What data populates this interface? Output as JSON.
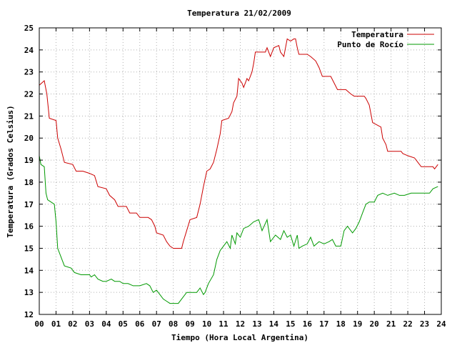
{
  "chart_data": {
    "type": "line",
    "title": "Temperatura 21/02/2009",
    "xlabel": "Tiempo (Hora Local Argentina)",
    "ylabel": "Temperatura (Grados Celsius)",
    "xlim": [
      0,
      24
    ],
    "ylim": [
      12,
      25
    ],
    "x_ticks": [
      "00",
      "01",
      "02",
      "03",
      "04",
      "05",
      "06",
      "07",
      "08",
      "09",
      "10",
      "11",
      "12",
      "13",
      "14",
      "15",
      "16",
      "17",
      "18",
      "19",
      "20",
      "21",
      "22",
      "23",
      "24"
    ],
    "y_ticks": [
      "12",
      "13",
      "14",
      "15",
      "16",
      "17",
      "18",
      "19",
      "20",
      "21",
      "22",
      "23",
      "24",
      "25"
    ],
    "grid": true,
    "legend_position": "top-right",
    "series": [
      {
        "name": "Temperatura",
        "color": "#cc0000",
        "points": [
          [
            0.0,
            22.4
          ],
          [
            0.15,
            22.5
          ],
          [
            0.3,
            22.6
          ],
          [
            0.45,
            22.0
          ],
          [
            0.6,
            20.9
          ],
          [
            1.0,
            20.8
          ],
          [
            1.1,
            20.0
          ],
          [
            1.3,
            19.5
          ],
          [
            1.5,
            18.9
          ],
          [
            2.0,
            18.8
          ],
          [
            2.2,
            18.5
          ],
          [
            2.6,
            18.5
          ],
          [
            3.0,
            18.4
          ],
          [
            3.3,
            18.3
          ],
          [
            3.5,
            17.8
          ],
          [
            4.0,
            17.7
          ],
          [
            4.2,
            17.4
          ],
          [
            4.5,
            17.2
          ],
          [
            4.7,
            16.9
          ],
          [
            5.2,
            16.9
          ],
          [
            5.4,
            16.6
          ],
          [
            5.8,
            16.6
          ],
          [
            6.0,
            16.4
          ],
          [
            6.5,
            16.4
          ],
          [
            6.7,
            16.3
          ],
          [
            6.9,
            16.0
          ],
          [
            7.0,
            15.7
          ],
          [
            7.4,
            15.6
          ],
          [
            7.6,
            15.3
          ],
          [
            7.8,
            15.1
          ],
          [
            8.0,
            15.0
          ],
          [
            8.5,
            15.0
          ],
          [
            8.6,
            15.3
          ],
          [
            8.8,
            15.8
          ],
          [
            9.0,
            16.3
          ],
          [
            9.4,
            16.4
          ],
          [
            9.6,
            17.0
          ],
          [
            9.8,
            17.8
          ],
          [
            10.0,
            18.5
          ],
          [
            10.2,
            18.6
          ],
          [
            10.4,
            18.9
          ],
          [
            10.6,
            19.5
          ],
          [
            10.8,
            20.2
          ],
          [
            10.9,
            20.8
          ],
          [
            11.3,
            20.9
          ],
          [
            11.5,
            21.2
          ],
          [
            11.6,
            21.6
          ],
          [
            11.8,
            21.9
          ],
          [
            11.9,
            22.7
          ],
          [
            12.1,
            22.5
          ],
          [
            12.2,
            22.3
          ],
          [
            12.4,
            22.7
          ],
          [
            12.5,
            22.6
          ],
          [
            12.7,
            23.0
          ],
          [
            12.8,
            23.4
          ],
          [
            12.9,
            23.9
          ],
          [
            13.5,
            23.9
          ],
          [
            13.6,
            24.1
          ],
          [
            13.8,
            23.7
          ],
          [
            14.0,
            24.1
          ],
          [
            14.3,
            24.2
          ],
          [
            14.4,
            23.9
          ],
          [
            14.6,
            23.7
          ],
          [
            14.8,
            24.5
          ],
          [
            15.0,
            24.4
          ],
          [
            15.2,
            24.5
          ],
          [
            15.3,
            24.5
          ],
          [
            15.4,
            24.1
          ],
          [
            15.5,
            23.8
          ],
          [
            16.0,
            23.8
          ],
          [
            16.2,
            23.7
          ],
          [
            16.5,
            23.5
          ],
          [
            16.7,
            23.2
          ],
          [
            16.9,
            22.8
          ],
          [
            17.4,
            22.8
          ],
          [
            17.6,
            22.5
          ],
          [
            17.8,
            22.2
          ],
          [
            18.3,
            22.2
          ],
          [
            18.6,
            22.0
          ],
          [
            18.8,
            21.9
          ],
          [
            19.4,
            21.9
          ],
          [
            19.5,
            21.8
          ],
          [
            19.7,
            21.5
          ],
          [
            19.9,
            20.7
          ],
          [
            20.4,
            20.5
          ],
          [
            20.5,
            20.0
          ],
          [
            20.7,
            19.7
          ],
          [
            20.8,
            19.4
          ],
          [
            21.6,
            19.4
          ],
          [
            21.7,
            19.3
          ],
          [
            22.0,
            19.2
          ],
          [
            22.4,
            19.1
          ],
          [
            22.6,
            18.9
          ],
          [
            22.8,
            18.7
          ],
          [
            23.5,
            18.7
          ],
          [
            23.6,
            18.6
          ],
          [
            23.8,
            18.8
          ]
        ]
      },
      {
        "name": "Punto de Rocío",
        "color": "#009900",
        "points": [
          [
            0.0,
            19.2
          ],
          [
            0.1,
            18.8
          ],
          [
            0.3,
            18.7
          ],
          [
            0.4,
            17.5
          ],
          [
            0.5,
            17.2
          ],
          [
            0.9,
            17.0
          ],
          [
            1.0,
            16.2
          ],
          [
            1.1,
            15.0
          ],
          [
            1.3,
            14.6
          ],
          [
            1.5,
            14.2
          ],
          [
            1.9,
            14.1
          ],
          [
            2.1,
            13.9
          ],
          [
            2.5,
            13.8
          ],
          [
            3.0,
            13.8
          ],
          [
            3.1,
            13.7
          ],
          [
            3.3,
            13.8
          ],
          [
            3.5,
            13.6
          ],
          [
            3.8,
            13.5
          ],
          [
            4.0,
            13.5
          ],
          [
            4.3,
            13.6
          ],
          [
            4.5,
            13.5
          ],
          [
            4.8,
            13.5
          ],
          [
            5.0,
            13.4
          ],
          [
            5.3,
            13.4
          ],
          [
            5.6,
            13.3
          ],
          [
            6.0,
            13.3
          ],
          [
            6.4,
            13.4
          ],
          [
            6.6,
            13.3
          ],
          [
            6.8,
            13.0
          ],
          [
            7.0,
            13.1
          ],
          [
            7.2,
            12.9
          ],
          [
            7.4,
            12.7
          ],
          [
            7.6,
            12.6
          ],
          [
            7.8,
            12.5
          ],
          [
            8.3,
            12.5
          ],
          [
            8.5,
            12.7
          ],
          [
            8.8,
            13.0
          ],
          [
            9.4,
            13.0
          ],
          [
            9.6,
            13.2
          ],
          [
            9.8,
            12.9
          ],
          [
            9.9,
            13.0
          ],
          [
            10.1,
            13.4
          ],
          [
            10.4,
            13.8
          ],
          [
            10.6,
            14.5
          ],
          [
            10.8,
            14.9
          ],
          [
            11.0,
            15.1
          ],
          [
            11.2,
            15.3
          ],
          [
            11.4,
            15.0
          ],
          [
            11.5,
            15.6
          ],
          [
            11.7,
            15.2
          ],
          [
            11.8,
            15.7
          ],
          [
            12.0,
            15.5
          ],
          [
            12.2,
            15.9
          ],
          [
            12.5,
            16.0
          ],
          [
            12.8,
            16.2
          ],
          [
            13.1,
            16.3
          ],
          [
            13.3,
            15.8
          ],
          [
            13.6,
            16.3
          ],
          [
            13.8,
            15.3
          ],
          [
            14.1,
            15.6
          ],
          [
            14.4,
            15.4
          ],
          [
            14.6,
            15.8
          ],
          [
            14.8,
            15.5
          ],
          [
            15.0,
            15.6
          ],
          [
            15.2,
            15.1
          ],
          [
            15.4,
            15.6
          ],
          [
            15.5,
            15.0
          ],
          [
            15.7,
            15.1
          ],
          [
            16.0,
            15.2
          ],
          [
            16.2,
            15.5
          ],
          [
            16.4,
            15.1
          ],
          [
            16.7,
            15.3
          ],
          [
            17.0,
            15.2
          ],
          [
            17.3,
            15.3
          ],
          [
            17.5,
            15.4
          ],
          [
            17.7,
            15.1
          ],
          [
            18.0,
            15.1
          ],
          [
            18.2,
            15.8
          ],
          [
            18.4,
            16.0
          ],
          [
            18.7,
            15.7
          ],
          [
            18.9,
            15.9
          ],
          [
            19.1,
            16.2
          ],
          [
            19.3,
            16.6
          ],
          [
            19.5,
            17.0
          ],
          [
            19.7,
            17.1
          ],
          [
            20.0,
            17.1
          ],
          [
            20.2,
            17.4
          ],
          [
            20.5,
            17.5
          ],
          [
            20.8,
            17.4
          ],
          [
            21.2,
            17.5
          ],
          [
            21.5,
            17.4
          ],
          [
            21.8,
            17.4
          ],
          [
            22.2,
            17.5
          ],
          [
            22.6,
            17.5
          ],
          [
            23.0,
            17.5
          ],
          [
            23.3,
            17.5
          ],
          [
            23.5,
            17.7
          ],
          [
            23.8,
            17.8
          ]
        ]
      }
    ]
  }
}
